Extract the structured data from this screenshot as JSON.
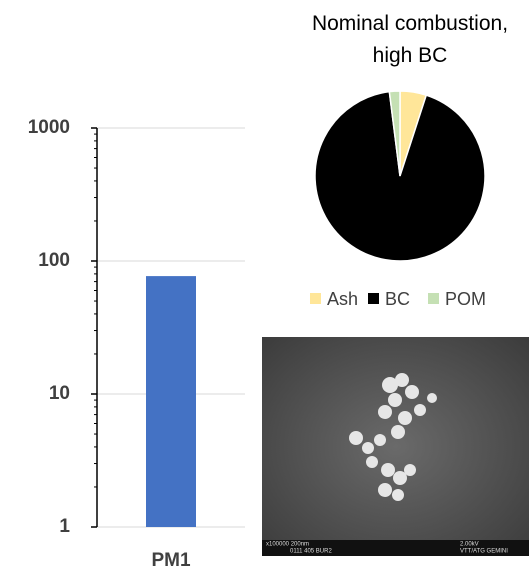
{
  "chart_data": [
    {
      "type": "bar",
      "categories": [
        "PM1"
      ],
      "values": [
        77
      ],
      "color": "#4472c4",
      "ylim": [
        1,
        1000
      ],
      "yticks": [
        1,
        10,
        100,
        1000
      ],
      "log_scale": true,
      "grid": true
    },
    {
      "type": "pie",
      "title": "Nominal combustion, high BC",
      "categories": [
        "Ash",
        "BC",
        "POM"
      ],
      "values": [
        5,
        93,
        2
      ],
      "colors": [
        "#ffe699",
        "#000000",
        "#c5e0b4"
      ],
      "legend": "bottom"
    }
  ],
  "sem_image": {
    "labels": [
      "x100000  200nm",
      "0111  405  BUR2",
      "2.00kV",
      "VTT/ATG GEMINI"
    ]
  }
}
